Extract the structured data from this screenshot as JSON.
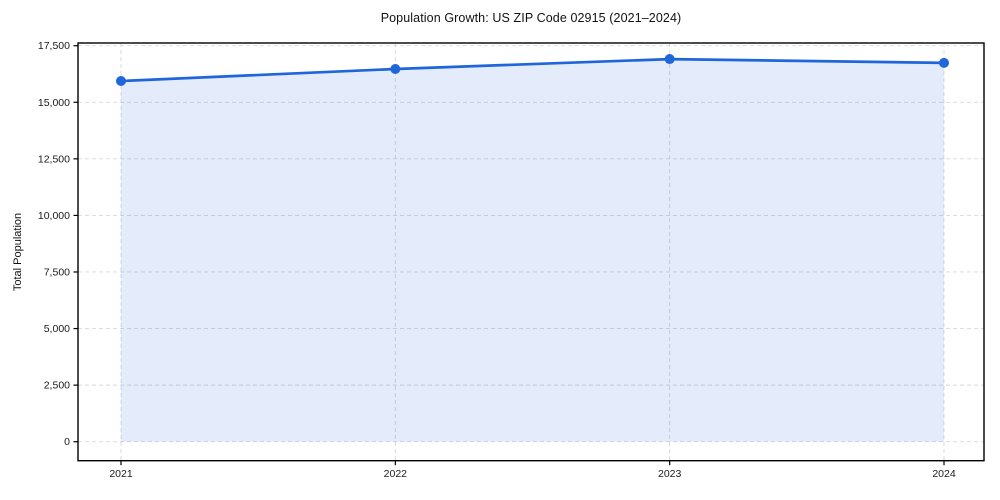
{
  "chart_data": {
    "type": "area",
    "title": "Population Growth: US ZIP Code 02915 (2021–2024)",
    "xlabel": "",
    "ylabel": "Total Population",
    "categories": [
      "2021",
      "2022",
      "2023",
      "2024"
    ],
    "series": [
      {
        "name": "Total Population",
        "values": [
          15940,
          16470,
          16910,
          16740
        ]
      }
    ],
    "yticks": [
      0,
      2500,
      5000,
      7500,
      10000,
      12500,
      15000,
      17500
    ],
    "ylim": [
      -840,
      17620
    ],
    "grid": true,
    "grid_style": "dashed",
    "legend": false,
    "line_color": "#1f66db",
    "marker": "circle",
    "marker_color": "#1f66db",
    "fill_color": "rgba(31,102,219,0.12)",
    "grid_color": "#d7d7d7",
    "spine_color": "#000000",
    "background_color": "#ffffff"
  }
}
